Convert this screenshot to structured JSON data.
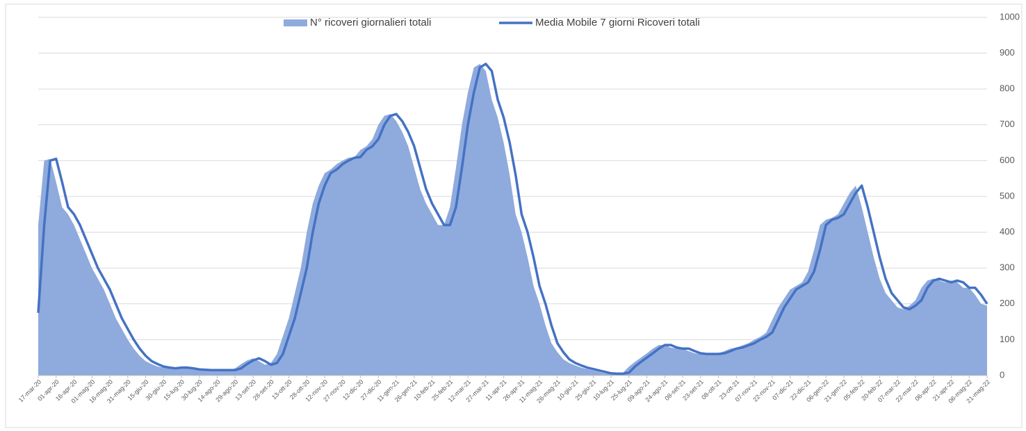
{
  "chart_data": {
    "type": "area",
    "series": [
      {
        "name": "N° ricoveri giornalieri totali",
        "style": "area",
        "color": "#8faadc",
        "values": [
          420,
          600,
          605,
          540,
          470,
          450,
          420,
          380,
          340,
          300,
          270,
          240,
          200,
          160,
          130,
          100,
          75,
          55,
          40,
          32,
          25,
          22,
          20,
          22,
          22,
          20,
          17,
          16,
          15,
          15,
          15,
          15,
          15,
          20,
          32,
          42,
          48,
          40,
          30,
          35,
          60,
          110,
          160,
          230,
          300,
          400,
          480,
          530,
          565,
          575,
          590,
          600,
          608,
          610,
          630,
          640,
          660,
          700,
          725,
          730,
          710,
          680,
          640,
          580,
          520,
          480,
          450,
          420,
          420,
          470,
          580,
          700,
          790,
          860,
          870,
          850,
          770,
          720,
          650,
          560,
          450,
          400,
          330,
          250,
          200,
          140,
          90,
          65,
          45,
          35,
          28,
          22,
          18,
          14,
          10,
          6,
          5,
          5,
          8,
          25,
          38,
          50,
          62,
          75,
          85,
          85,
          78,
          75,
          75,
          68,
          62,
          60,
          60,
          60,
          62,
          68,
          75,
          78,
          84,
          90,
          100,
          108,
          120,
          155,
          190,
          215,
          240,
          250,
          260,
          290,
          350,
          420,
          435,
          440,
          450,
          480,
          510,
          530,
          470,
          400,
          330,
          270,
          230,
          210,
          190,
          185,
          195,
          210,
          245,
          265,
          270,
          265,
          260,
          265,
          260,
          245,
          245,
          225,
          200,
          195
        ]
      },
      {
        "name": "Media Mobile 7 giorni  Ricoveri totali",
        "style": "line",
        "color": "#4472c4",
        "values": [
          175,
          420,
          600,
          605,
          540,
          470,
          450,
          420,
          380,
          340,
          300,
          270,
          240,
          200,
          160,
          130,
          100,
          75,
          55,
          40,
          32,
          25,
          22,
          20,
          22,
          22,
          20,
          17,
          16,
          15,
          15,
          15,
          15,
          15,
          20,
          32,
          42,
          48,
          40,
          30,
          35,
          60,
          110,
          160,
          230,
          300,
          400,
          480,
          530,
          565,
          575,
          590,
          600,
          608,
          610,
          630,
          640,
          660,
          700,
          725,
          730,
          710,
          680,
          640,
          580,
          520,
          480,
          450,
          420,
          420,
          470,
          580,
          700,
          790,
          860,
          870,
          850,
          770,
          720,
          650,
          560,
          450,
          400,
          330,
          250,
          200,
          140,
          90,
          65,
          45,
          35,
          28,
          22,
          18,
          14,
          10,
          6,
          5,
          5,
          8,
          25,
          38,
          50,
          62,
          75,
          85,
          85,
          78,
          75,
          75,
          68,
          62,
          60,
          60,
          60,
          62,
          68,
          75,
          78,
          84,
          90,
          100,
          108,
          120,
          155,
          190,
          215,
          240,
          250,
          260,
          290,
          350,
          420,
          435,
          440,
          450,
          480,
          510,
          530,
          470,
          400,
          330,
          270,
          230,
          210,
          190,
          185,
          195,
          210,
          245,
          265,
          270,
          265,
          260,
          265,
          260,
          245,
          245,
          225,
          200
        ]
      }
    ],
    "categories": [
      "17-mar-20",
      null,
      null,
      "01-apr-20",
      null,
      null,
      "16-apr-20",
      null,
      null,
      "01-mag-20",
      null,
      null,
      "16-mag-20",
      null,
      null,
      "31-mag-20",
      null,
      null,
      "15-giu-20",
      null,
      null,
      "30-giu-20",
      null,
      null,
      "15-lug-20",
      null,
      null,
      "30-lug-20",
      null,
      null,
      "14-ago-20",
      null,
      null,
      "29-ago-20",
      null,
      null,
      "13-set-20",
      null,
      null,
      "28-set-20",
      null,
      null,
      "13-ott-20",
      null,
      null,
      "28-ott-20",
      null,
      null,
      "12-nov-20",
      null,
      null,
      "27-nov-20",
      null,
      null,
      "12-dic-20",
      null,
      null,
      "27-dic-20",
      null,
      null,
      "11-gen-21",
      null,
      null,
      "26-gen-21",
      null,
      null,
      "10-feb-21",
      null,
      null,
      "25-feb-21",
      null,
      null,
      "12-mar-21",
      null,
      null,
      "27-mar-21",
      null,
      null,
      "11-apr-21",
      null,
      null,
      "26-apr-21",
      null,
      null,
      "11-mag-21",
      null,
      null,
      "26-mag-21",
      null,
      null,
      "10-giu-21",
      null,
      null,
      "25-giu-21",
      null,
      null,
      "10-lug-21",
      null,
      null,
      "25-lug-21",
      null,
      null,
      "09-ago-21",
      null,
      null,
      "24-ago-21",
      null,
      null,
      "08-set-21",
      null,
      null,
      "23-set-21",
      null,
      null,
      "08-ott-21",
      null,
      null,
      "23-ott-21",
      null,
      null,
      "07-nov-21",
      null,
      null,
      "22-nov-21",
      null,
      null,
      "07-dic-21",
      null,
      null,
      "22-dic-21",
      null,
      null,
      "06-gen-22",
      null,
      null,
      "21-gen-22",
      null,
      null,
      "05-feb-22",
      null,
      null,
      "20-feb-22",
      null,
      null,
      "07-mar-22",
      null,
      null,
      "22-mar-22",
      null,
      null,
      "06-apr-22",
      null,
      null,
      "21-apr-22",
      null,
      null,
      "06-mag-22",
      null,
      null,
      "21-mag-22"
    ],
    "ylim": [
      0,
      1000
    ],
    "yticks": [
      0,
      100,
      200,
      300,
      400,
      500,
      600,
      700,
      800,
      900,
      1000
    ],
    "grid": true,
    "legend": "top"
  }
}
